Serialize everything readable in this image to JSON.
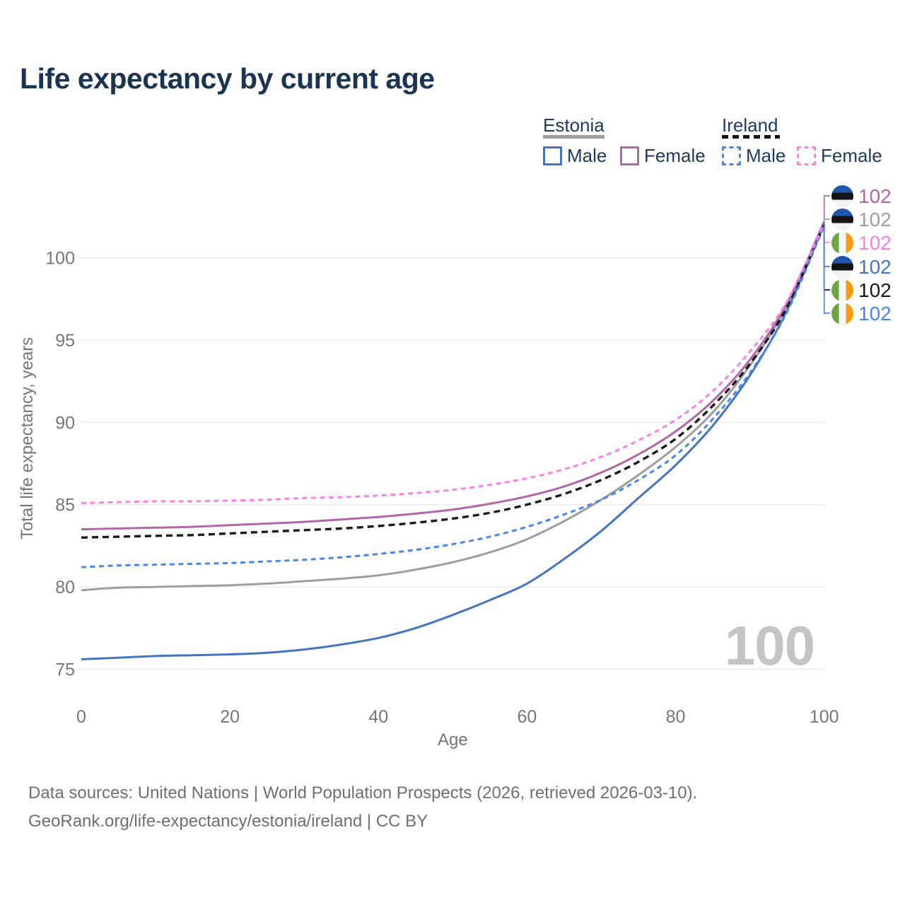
{
  "title": "Life expectancy by current age",
  "legend": {
    "groups": [
      {
        "country": "Estonia",
        "line_style": "solid",
        "header_line_color": "#9e9e9e",
        "items": [
          {
            "label": "Male",
            "color": "#4574c0"
          },
          {
            "label": "Female",
            "color": "#b267a8"
          }
        ]
      },
      {
        "country": "Ireland",
        "line_style": "dashed",
        "header_line_color": "#1a1a1a",
        "items": [
          {
            "label": "Male",
            "color": "#4786f2"
          },
          {
            "label": "Female",
            "color": "#fb80e8"
          }
        ]
      }
    ]
  },
  "chart_data": {
    "type": "line",
    "title": "Life expectancy by current age",
    "xlabel": "Age",
    "ylabel": "Total life expectancy, years",
    "x_ticks": [
      0,
      20,
      40,
      60,
      80,
      100
    ],
    "y_ticks": [
      75,
      80,
      85,
      90,
      95,
      100
    ],
    "xlim": [
      0,
      100
    ],
    "ylim": [
      74,
      102.4
    ],
    "grid": "horizontal",
    "legend_position": "top-right",
    "x": [
      0,
      5,
      10,
      15,
      20,
      25,
      30,
      35,
      40,
      45,
      50,
      55,
      60,
      65,
      70,
      75,
      80,
      85,
      90,
      95,
      100
    ],
    "series": [
      {
        "name": "Estonia (both sexes)",
        "country": "Estonia",
        "sex": "Both",
        "line": "solid",
        "color": "#9e9e9e",
        "width": 3,
        "values": [
          79.8,
          79.95,
          80.0,
          80.05,
          80.1,
          80.2,
          80.35,
          80.5,
          80.7,
          81.05,
          81.5,
          82.1,
          82.9,
          84.0,
          85.3,
          86.8,
          88.5,
          90.6,
          93.45,
          97.1,
          102.15
        ]
      },
      {
        "name": "Estonia Female",
        "country": "Estonia",
        "sex": "Female",
        "line": "solid",
        "color": "#b267a8",
        "width": 3,
        "values": [
          83.5,
          83.55,
          83.6,
          83.65,
          83.75,
          83.85,
          83.95,
          84.1,
          84.25,
          84.45,
          84.7,
          85.05,
          85.5,
          86.1,
          86.95,
          88.05,
          89.45,
          91.3,
          93.8,
          97.25,
          102.2
        ]
      },
      {
        "name": "Estonia Male",
        "country": "Estonia",
        "sex": "Male",
        "line": "solid",
        "color": "#4574c0",
        "width": 3,
        "values": [
          75.6,
          75.7,
          75.8,
          75.85,
          75.9,
          76.0,
          76.2,
          76.5,
          76.9,
          77.5,
          78.3,
          79.2,
          80.2,
          81.7,
          83.4,
          85.4,
          87.4,
          89.8,
          92.85,
          96.8,
          102.05
        ]
      },
      {
        "name": "Ireland (both sexes)",
        "country": "Ireland",
        "sex": "Both",
        "line": "dashed",
        "color": "#1a1a1a",
        "width": 3.4,
        "values": [
          83.0,
          83.05,
          83.1,
          83.15,
          83.25,
          83.35,
          83.45,
          83.55,
          83.7,
          83.9,
          84.15,
          84.5,
          85.0,
          85.65,
          86.5,
          87.6,
          89.0,
          91.0,
          93.55,
          97.0,
          102.0
        ]
      },
      {
        "name": "Ireland Male",
        "country": "Ireland",
        "sex": "Male",
        "line": "dashed",
        "color": "#4786f2",
        "width": 3,
        "values": [
          81.2,
          81.3,
          81.35,
          81.4,
          81.45,
          81.55,
          81.65,
          81.8,
          82.0,
          82.25,
          82.6,
          83.05,
          83.65,
          84.4,
          85.3,
          86.5,
          88.0,
          90.2,
          93.0,
          96.7,
          101.95
        ]
      },
      {
        "name": "Ireland Female",
        "country": "Ireland",
        "sex": "Female",
        "line": "dashed",
        "color": "#fb80e8",
        "width": 3,
        "values": [
          85.1,
          85.15,
          85.2,
          85.2,
          85.25,
          85.3,
          85.4,
          85.45,
          85.55,
          85.7,
          85.9,
          86.2,
          86.6,
          87.15,
          87.9,
          88.9,
          90.15,
          91.9,
          94.3,
          97.35,
          102.1
        ]
      }
    ]
  },
  "end_labels": [
    {
      "flag": "estonia",
      "series": "Estonia Female",
      "value": "102",
      "color": "#b267a8"
    },
    {
      "flag": "estonia",
      "series": "Estonia (both sexes)",
      "value": "102",
      "color": "#9e9e9e"
    },
    {
      "flag": "ireland",
      "series": "Ireland Female",
      "value": "102",
      "color": "#fb80e8"
    },
    {
      "flag": "estonia",
      "series": "Estonia Male",
      "value": "102",
      "color": "#4574c0"
    },
    {
      "flag": "ireland",
      "series": "Ireland (both sexes)",
      "value": "102",
      "color": "#1a1a1a"
    },
    {
      "flag": "ireland",
      "series": "Ireland Male",
      "value": "102",
      "color": "#4786f2"
    }
  ],
  "flag_colors": {
    "estonia": [
      "#1e57ab",
      "#151515",
      "#f2f2f2"
    ],
    "ireland": [
      "#6da544",
      "#f6f6f6",
      "#ff9811"
    ]
  },
  "watermark": "100",
  "footer": {
    "line1": "Data sources: United Nations | World Population Prospects (2026, retrieved 2026-03-10).",
    "line2": "GeoRank.org/life-expectancy/estonia/ireland | CC BY"
  }
}
